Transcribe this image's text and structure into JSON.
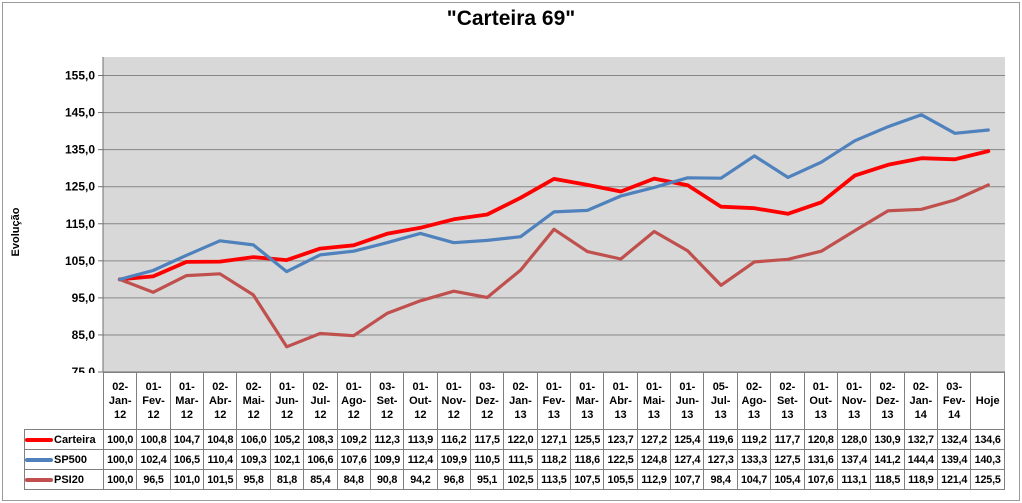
{
  "window": {
    "background": "#FFFFFF",
    "frame_border_color": "#9A9A9A"
  },
  "chart_data": {
    "type": "line",
    "title": "\"Carteira 69\"",
    "ylabel": "Evolução",
    "xlabel": "",
    "ylim": [
      75,
      160
    ],
    "y_tick_step": 10,
    "y_ticks": [
      155.0,
      145.0,
      135.0,
      125.0,
      115.0,
      105.0,
      95.0,
      85.0,
      75.0
    ],
    "grid": true,
    "decimal_style": "comma",
    "legend_position": "table-left",
    "plot_bg_color": "#D8D8D8",
    "gridline_color": "#878787",
    "axis_color": "#6F6F6F",
    "table_border_color": "#808080",
    "categories": [
      "02-Jan-12",
      "01-Fev-12",
      "01-Mar-12",
      "02-Abr-12",
      "02-Mai-12",
      "01-Jun-12",
      "02-Jul-12",
      "01-Ago-12",
      "03-Set-12",
      "01-Out-12",
      "01-Nov-12",
      "03-Dez-12",
      "02-Jan-13",
      "01-Fev-13",
      "01-Mar-13",
      "01-Abr-13",
      "01-Mai-13",
      "01-Jun-13",
      "05-Jul-13",
      "02-Ago-13",
      "02-Set-13",
      "01-Out-13",
      "01-Nov-13",
      "02-Dez-13",
      "02-Jan-14",
      "03-Fev-14",
      "Hoje"
    ],
    "series": [
      {
        "name": "Carteira",
        "color": "#FF0000",
        "values": [
          100.0,
          100.8,
          104.7,
          104.8,
          106.0,
          105.2,
          108.3,
          109.2,
          112.3,
          113.9,
          116.2,
          117.5,
          122.0,
          127.1,
          125.5,
          123.7,
          127.2,
          125.4,
          119.6,
          119.2,
          117.7,
          120.8,
          128.0,
          130.9,
          132.7,
          132.4,
          134.6
        ]
      },
      {
        "name": "SP500",
        "color": "#4F81BD",
        "values": [
          100.0,
          102.4,
          106.5,
          110.4,
          109.3,
          102.1,
          106.6,
          107.6,
          109.9,
          112.4,
          109.9,
          110.5,
          111.5,
          118.2,
          118.6,
          122.5,
          124.8,
          127.4,
          127.3,
          133.3,
          127.5,
          131.6,
          137.4,
          141.2,
          144.4,
          139.4,
          140.3
        ]
      },
      {
        "name": "PSI20",
        "color": "#C0504D",
        "values": [
          100.0,
          96.5,
          101.0,
          101.5,
          95.8,
          81.8,
          85.4,
          84.8,
          90.8,
          94.2,
          96.8,
          95.1,
          102.5,
          113.5,
          107.5,
          105.5,
          112.9,
          107.7,
          98.4,
          104.7,
          105.4,
          107.6,
          113.1,
          118.5,
          118.9,
          121.4,
          125.5
        ]
      }
    ]
  }
}
